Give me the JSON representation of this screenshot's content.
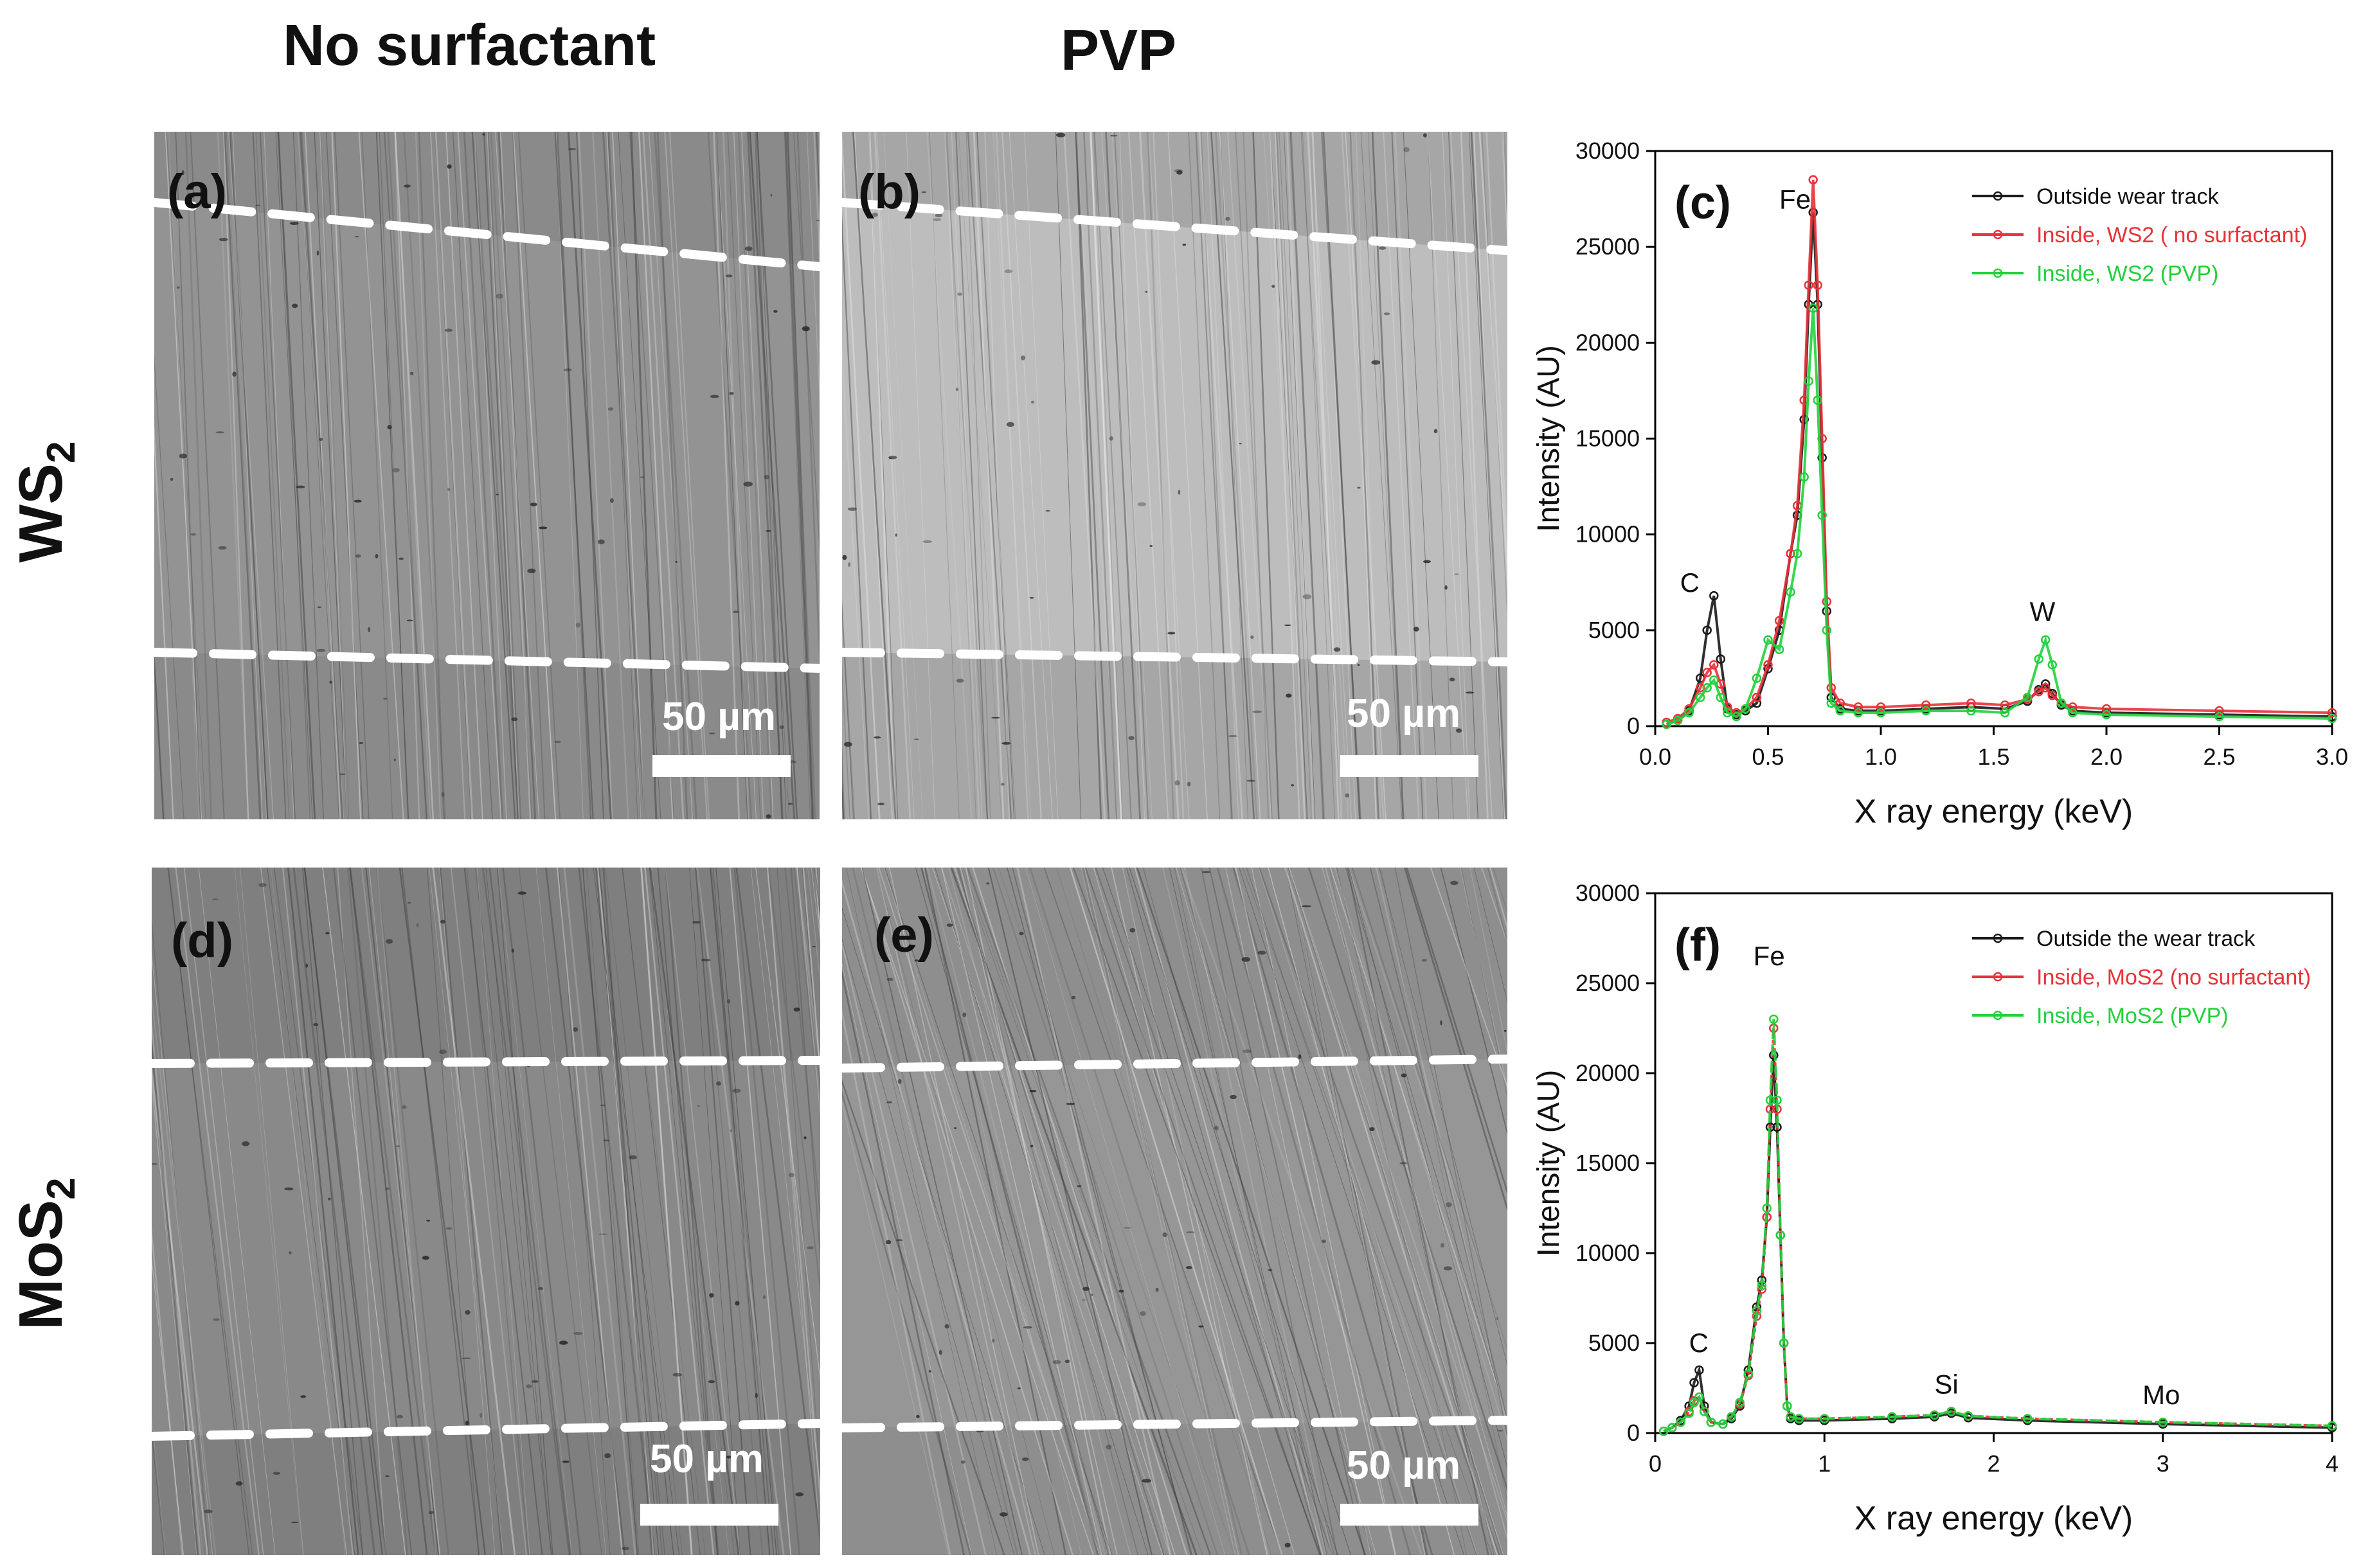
{
  "figure": {
    "column_headers": [
      "No surfactant",
      "PVP"
    ],
    "row_headers": [
      {
        "main": "WS",
        "sub": "2"
      },
      {
        "main": "MoS",
        "sub": "2"
      }
    ],
    "panels": [
      {
        "label": "(a)",
        "scale": "50 µm",
        "tone": "#8a8a8a"
      },
      {
        "label": "(b)",
        "scale": "50 µm",
        "tone": "#a6a6a6"
      },
      {
        "label": "(d)",
        "scale": "50 µm",
        "tone": "#7f7f7f"
      },
      {
        "label": "(e)",
        "scale": "50 µm",
        "tone": "#8e8e8e"
      }
    ]
  },
  "chart_data": [
    {
      "type": "line",
      "panel_label": "(c)",
      "xlabel": "X ray energy (keV)",
      "ylabel": "Intensity (AU)",
      "xlim": [
        0.0,
        3.0
      ],
      "ylim": [
        0,
        30000
      ],
      "xticks": [
        "0.0",
        "0.5",
        "1.0",
        "1.5",
        "2.0",
        "2.5",
        "3.0"
      ],
      "yticks": [
        "0",
        "5000",
        "10000",
        "15000",
        "20000",
        "25000",
        "30000"
      ],
      "legend_position": "top-right",
      "annotations": [
        {
          "text": "C",
          "x": 0.11,
          "y": 7000
        },
        {
          "text": "Fe",
          "x": 0.55,
          "y": 27000
        },
        {
          "text": "W",
          "x": 1.66,
          "y": 5500
        }
      ],
      "series": [
        {
          "name": "Outside wear track",
          "color": "#1a1a1a",
          "x": [
            0.05,
            0.1,
            0.15,
            0.2,
            0.23,
            0.26,
            0.29,
            0.32,
            0.36,
            0.4,
            0.45,
            0.5,
            0.55,
            0.6,
            0.63,
            0.66,
            0.68,
            0.7,
            0.72,
            0.74,
            0.76,
            0.78,
            0.82,
            0.9,
            1.0,
            1.2,
            1.4,
            1.55,
            1.65,
            1.7,
            1.73,
            1.76,
            1.8,
            1.85,
            2.0,
            2.5,
            3.0
          ],
          "y": [
            100,
            300,
            800,
            2500,
            5000,
            6800,
            3500,
            900,
            600,
            800,
            1200,
            3000,
            5000,
            9000,
            11000,
            16000,
            22000,
            26800,
            22000,
            14000,
            6000,
            1500,
            900,
            800,
            800,
            900,
            1000,
            900,
            1300,
            1900,
            2200,
            1700,
            1100,
            800,
            700,
            600,
            500
          ]
        },
        {
          "name": "Inside, WS2 ( no surfactant)",
          "color": "#e8323a",
          "x": [
            0.05,
            0.1,
            0.15,
            0.2,
            0.23,
            0.26,
            0.29,
            0.32,
            0.36,
            0.4,
            0.45,
            0.5,
            0.55,
            0.6,
            0.63,
            0.66,
            0.68,
            0.7,
            0.72,
            0.74,
            0.76,
            0.78,
            0.82,
            0.9,
            1.0,
            1.2,
            1.4,
            1.55,
            1.65,
            1.7,
            1.73,
            1.76,
            1.8,
            1.85,
            2.0,
            2.5,
            3.0
          ],
          "y": [
            200,
            400,
            900,
            2000,
            2800,
            3200,
            2200,
            1000,
            700,
            900,
            1500,
            3200,
            5500,
            9000,
            11500,
            17000,
            23000,
            28500,
            23000,
            15000,
            6500,
            2000,
            1200,
            1000,
            1000,
            1100,
            1200,
            1100,
            1400,
            1800,
            2000,
            1600,
            1200,
            1000,
            900,
            800,
            700
          ]
        },
        {
          "name": "Inside, WS2 (PVP)",
          "color": "#22d13c",
          "x": [
            0.05,
            0.1,
            0.15,
            0.2,
            0.23,
            0.26,
            0.29,
            0.32,
            0.36,
            0.4,
            0.45,
            0.5,
            0.55,
            0.6,
            0.63,
            0.66,
            0.68,
            0.7,
            0.72,
            0.74,
            0.76,
            0.78,
            0.82,
            0.9,
            1.0,
            1.2,
            1.4,
            1.55,
            1.65,
            1.7,
            1.73,
            1.76,
            1.8,
            1.85,
            2.0,
            2.5,
            3.0
          ],
          "y": [
            100,
            300,
            700,
            1500,
            2000,
            2400,
            1500,
            700,
            500,
            900,
            2500,
            4500,
            4000,
            7000,
            9000,
            13000,
            18000,
            21800,
            17000,
            11000,
            5000,
            1200,
            800,
            700,
            700,
            800,
            800,
            700,
            1500,
            3500,
            4500,
            3200,
            1200,
            700,
            600,
            500,
            400
          ]
        }
      ]
    },
    {
      "type": "line",
      "panel_label": "(f)",
      "xlabel": "X ray energy (keV)",
      "ylabel": "Intensity (AU)",
      "xlim": [
        0,
        4
      ],
      "ylim": [
        0,
        30000
      ],
      "xticks": [
        "0",
        "1",
        "2",
        "3",
        "4"
      ],
      "yticks": [
        "0",
        "5000",
        "10000",
        "15000",
        "20000",
        "25000",
        "30000"
      ],
      "legend_position": "top-right",
      "annotations": [
        {
          "text": "C",
          "x": 0.2,
          "y": 4500
        },
        {
          "text": "Fe",
          "x": 0.58,
          "y": 26000
        },
        {
          "text": "Si",
          "x": 1.65,
          "y": 2200
        },
        {
          "text": "Mo",
          "x": 2.88,
          "y": 1600
        }
      ],
      "series": [
        {
          "name": "Outside the wear track",
          "color": "#1a1a1a",
          "x": [
            0.05,
            0.1,
            0.15,
            0.2,
            0.23,
            0.26,
            0.29,
            0.33,
            0.4,
            0.45,
            0.5,
            0.55,
            0.6,
            0.63,
            0.66,
            0.68,
            0.7,
            0.72,
            0.74,
            0.76,
            0.78,
            0.8,
            0.85,
            1.0,
            1.4,
            1.65,
            1.75,
            1.85,
            2.2,
            3.0,
            4.0
          ],
          "y": [
            100,
            300,
            700,
            1500,
            2800,
            3500,
            1500,
            600,
            500,
            800,
            1500,
            3500,
            7000,
            8500,
            12000,
            17000,
            21000,
            17000,
            11000,
            5000,
            1500,
            800,
            700,
            700,
            800,
            900,
            1100,
            850,
            700,
            500,
            300
          ]
        },
        {
          "name": "Inside, MoS2 (no surfactant)",
          "color": "#e8323a",
          "x": [
            0.05,
            0.1,
            0.15,
            0.2,
            0.23,
            0.26,
            0.29,
            0.33,
            0.4,
            0.45,
            0.5,
            0.55,
            0.6,
            0.63,
            0.66,
            0.68,
            0.7,
            0.72,
            0.74,
            0.76,
            0.78,
            0.8,
            0.85,
            1.0,
            1.4,
            1.65,
            1.75,
            1.85,
            2.2,
            3.0,
            4.0
          ],
          "y": [
            100,
            300,
            600,
            1200,
            1800,
            2000,
            1200,
            600,
            500,
            900,
            1600,
            3200,
            6500,
            8000,
            12000,
            18000,
            22500,
            18000,
            11000,
            5000,
            1500,
            900,
            800,
            800,
            900,
            1000,
            1200,
            950,
            800,
            600,
            400
          ]
        },
        {
          "name": "Inside, MoS2 (PVP)",
          "color": "#22d13c",
          "x": [
            0.05,
            0.1,
            0.15,
            0.2,
            0.23,
            0.26,
            0.29,
            0.33,
            0.4,
            0.45,
            0.5,
            0.55,
            0.6,
            0.63,
            0.66,
            0.68,
            0.7,
            0.72,
            0.74,
            0.76,
            0.78,
            0.8,
            0.85,
            1.0,
            1.4,
            1.65,
            1.75,
            1.85,
            2.2,
            3.0,
            4.0
          ],
          "y": [
            100,
            300,
            600,
            1100,
            1700,
            2000,
            1200,
            600,
            500,
            900,
            1700,
            3300,
            6800,
            8200,
            12500,
            18500,
            23000,
            18500,
            11000,
            5000,
            1500,
            900,
            800,
            800,
            900,
            1000,
            1200,
            950,
            800,
            600,
            400
          ]
        }
      ]
    }
  ]
}
